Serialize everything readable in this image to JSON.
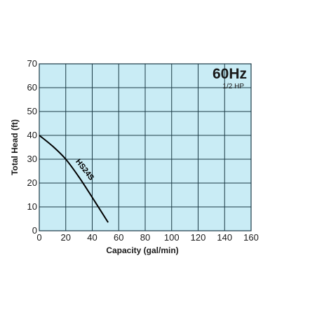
{
  "chart_data": {
    "type": "line",
    "title": "60Hz",
    "subtitle": "1/2 HP",
    "xlabel": "Capacity (gal/min)",
    "ylabel": "Total Head (ft)",
    "xlim": [
      0,
      160
    ],
    "ylim": [
      0,
      70
    ],
    "x_ticks": [
      "0",
      "20",
      "40",
      "60",
      "80",
      "100",
      "120",
      "140",
      "160"
    ],
    "y_ticks": [
      "0",
      "10",
      "20",
      "30",
      "40",
      "50",
      "60",
      "70"
    ],
    "grid": true,
    "series": [
      {
        "name": "HS24S",
        "x": [
          0,
          10,
          20,
          30,
          40,
          52
        ],
        "y": [
          40,
          35.5,
          30,
          22.5,
          14,
          3.5
        ]
      }
    ],
    "colors": {
      "plot_background": "#c9ecf5",
      "grid": "#1b3a45",
      "line": "#000000",
      "text": "#1a1a1a"
    }
  }
}
